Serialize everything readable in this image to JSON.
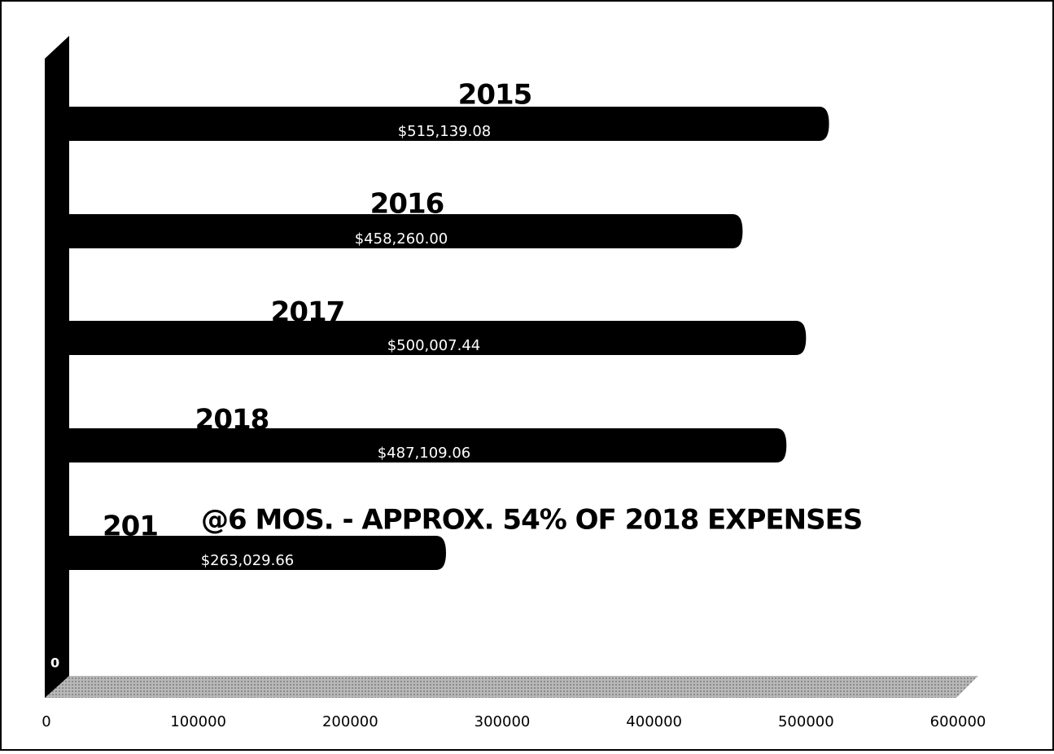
{
  "chart_data": {
    "type": "bar",
    "orientation": "horizontal",
    "categories": [
      "2015",
      "2016",
      "2017",
      "2018",
      "201"
    ],
    "values": [
      515139.08,
      458260.0,
      500007.44,
      487109.06,
      263029.66
    ],
    "value_labels": [
      "$515,139.08",
      "$458,260.00",
      "$500,007.44",
      "$487,109.06",
      "$263,029.66"
    ],
    "color": "#000000",
    "xlim": [
      0,
      600000
    ],
    "xticks": [
      0,
      100000,
      200000,
      300000,
      400000,
      500000,
      600000
    ],
    "annotations": [
      "@6 MOS. - APPROX. 54% OF 2018 EXPENSES",
      "0"
    ],
    "grid": false
  }
}
